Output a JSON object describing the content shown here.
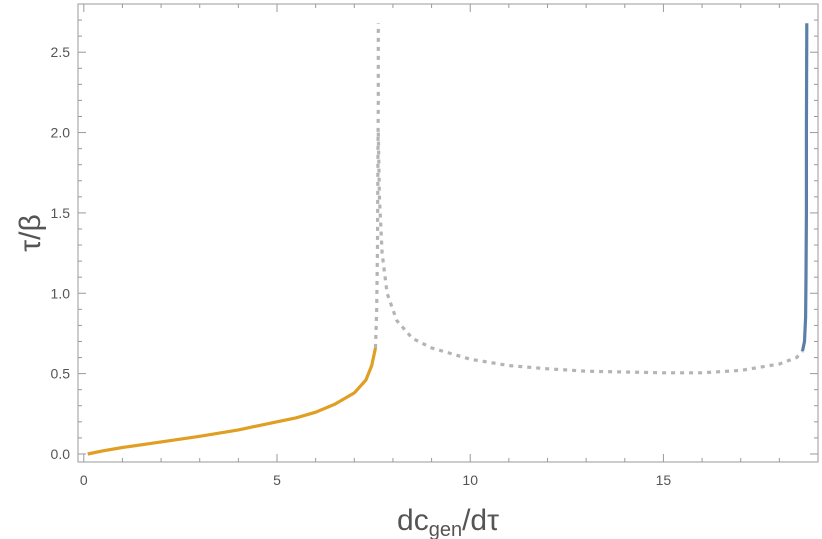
{
  "chart_data": {
    "type": "line",
    "title": "",
    "xlabel": "dc|gen|/dτ",
    "ylabel": "τ/β",
    "xlim": [
      -0.15,
      19.0
    ],
    "ylim": [
      -0.05,
      2.8
    ],
    "grid": false,
    "legend": "none",
    "x_ticks": [
      {
        "value": 0,
        "label": "0"
      },
      {
        "value": 5,
        "label": "5"
      },
      {
        "value": 10,
        "label": "10"
      },
      {
        "value": 15,
        "label": "15"
      }
    ],
    "y_ticks": [
      {
        "value": 0.0,
        "label": "0.0"
      },
      {
        "value": 0.5,
        "label": "0.5"
      },
      {
        "value": 1.0,
        "label": "1.0"
      },
      {
        "value": 1.5,
        "label": "1.5"
      },
      {
        "value": 2.0,
        "label": "2.0"
      },
      {
        "value": 2.5,
        "label": "2.5"
      }
    ],
    "series": [
      {
        "style": "solid",
        "color": "#e09e22",
        "points": [
          [
            0.1,
            0.0
          ],
          [
            0.5,
            0.02
          ],
          [
            1,
            0.04
          ],
          [
            2,
            0.075
          ],
          [
            3,
            0.11
          ],
          [
            4,
            0.15
          ],
          [
            5,
            0.2
          ],
          [
            5.5,
            0.225
          ],
          [
            6,
            0.26
          ],
          [
            6.5,
            0.31
          ],
          [
            7,
            0.38
          ],
          [
            7.3,
            0.46
          ],
          [
            7.45,
            0.55
          ],
          [
            7.55,
            0.66
          ]
        ]
      },
      {
        "style": "dotted",
        "color": "#b4b4b4",
        "points": [
          [
            7.55,
            0.66
          ],
          [
            7.58,
            0.9
          ],
          [
            7.6,
            1.3
          ],
          [
            7.61,
            1.8
          ],
          [
            7.62,
            2.2
          ],
          [
            7.62,
            2.68
          ]
        ]
      },
      {
        "style": "dotted",
        "color": "#b4b4b4",
        "points": [
          [
            7.62,
            2.0
          ],
          [
            7.65,
            1.6
          ],
          [
            7.72,
            1.25
          ],
          [
            7.85,
            1.0
          ],
          [
            8.1,
            0.83
          ],
          [
            8.5,
            0.72
          ],
          [
            9,
            0.66
          ],
          [
            10,
            0.59
          ],
          [
            11,
            0.55
          ],
          [
            12,
            0.53
          ],
          [
            13,
            0.515
          ],
          [
            14,
            0.51
          ],
          [
            15,
            0.505
          ],
          [
            16,
            0.505
          ],
          [
            17,
            0.52
          ],
          [
            18,
            0.56
          ],
          [
            18.45,
            0.6
          ],
          [
            18.6,
            0.64
          ]
        ]
      },
      {
        "style": "solid",
        "color": "#5b7fa9",
        "points": [
          [
            18.6,
            0.64
          ],
          [
            18.65,
            0.7
          ],
          [
            18.68,
            0.85
          ],
          [
            18.69,
            1.1
          ],
          [
            18.7,
            1.5
          ],
          [
            18.7,
            2.0
          ],
          [
            18.71,
            2.68
          ]
        ]
      }
    ]
  }
}
